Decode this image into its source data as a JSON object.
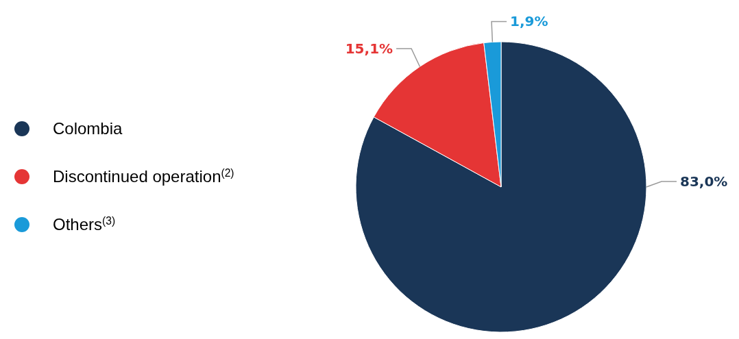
{
  "chart_data": {
    "type": "pie",
    "categories": [
      "Colombia",
      "Discontinued operation$^{(2)}$",
      "Others$^{(3)}$"
    ],
    "values": [
      83.0,
      15.1,
      1.9
    ],
    "colors": [
      "#1a3657",
      "#e53535",
      "#1a9ad9"
    ],
    "value_labels": [
      "83,0%",
      "15,1%",
      "1,9%"
    ],
    "legend": "left"
  }
}
